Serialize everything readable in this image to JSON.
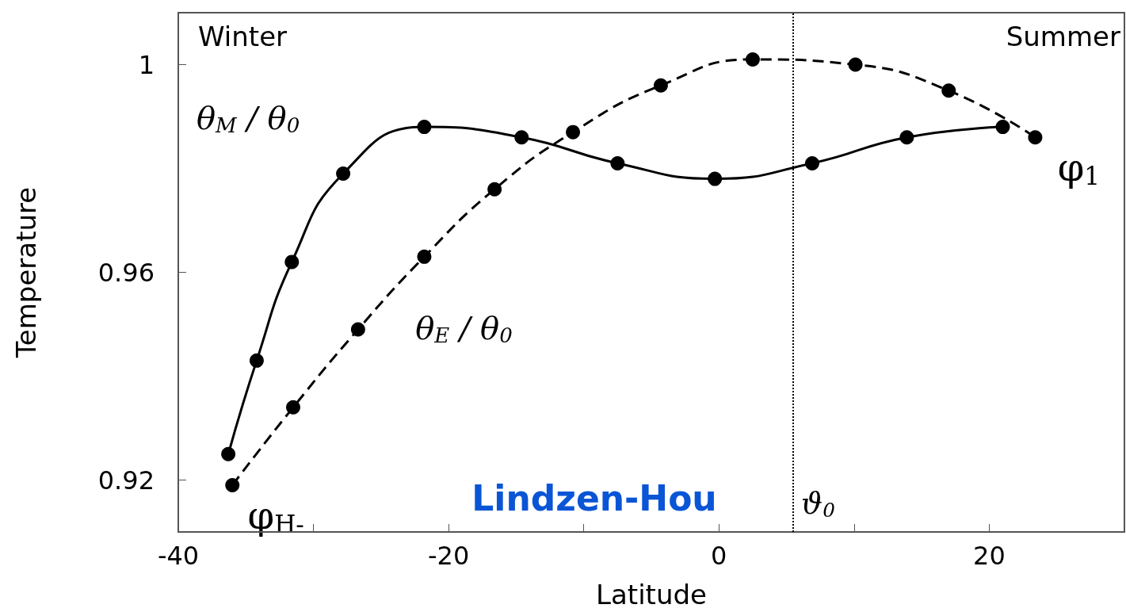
{
  "chart_data": {
    "type": "line",
    "xlabel": "Latitude",
    "ylabel": "Temperature",
    "xlim": [
      -40,
      30
    ],
    "xticks": [
      -40,
      {
        "value": -30,
        "label": null
      },
      -20,
      {
        "value": -10,
        "label": null
      },
      0,
      {
        "value": 10,
        "label": null
      },
      20
    ],
    "ylim": [
      0.91,
      1.01
    ],
    "yticks": [
      0.92,
      0.96,
      {
        "value": 1,
        "label": "1"
      }
    ],
    "grid": false,
    "legend": false,
    "series": [
      {
        "name": "θ$_{M}$ / θ$_{0}$",
        "color": "#000000",
        "marker": "circle",
        "line_style": "solid",
        "x": [
          -36.3,
          -34.2,
          -31.6,
          -27.8,
          -21.8,
          -14.6,
          -7.5,
          -0.3,
          6.9,
          13.9,
          21.0
        ],
        "values": [
          0.925,
          0.943,
          0.962,
          0.979,
          0.988,
          0.986,
          0.981,
          0.978,
          0.981,
          0.986,
          0.988
        ]
      },
      {
        "name": "θ$_{E}$ / θ$_{0}$",
        "color": "#000000",
        "marker": "circle",
        "line_style": "dashed",
        "x": [
          -36.0,
          -31.5,
          -26.7,
          -21.8,
          -16.6,
          -10.8,
          -4.3,
          2.5,
          10.1,
          17.0,
          23.4
        ],
        "values": [
          0.919,
          0.934,
          0.949,
          0.963,
          0.976,
          0.987,
          0.996,
          1.001,
          1.0,
          0.995,
          0.986
        ]
      }
    ],
    "ref_lines": [
      {
        "axis": "x",
        "value": 5.5,
        "label": "ϑ$_{0}$",
        "line_style": "dotted",
        "color": "#000000"
      }
    ],
    "annotations": [
      "Winter",
      "Summer",
      "Lindzen-Hou",
      {
        "text": "φ$_{H-}$",
        "x": -36.0,
        "y": 0.919
      },
      {
        "text": "φ$_{1}$",
        "x": 23.4,
        "y": 0.986
      }
    ]
  }
}
